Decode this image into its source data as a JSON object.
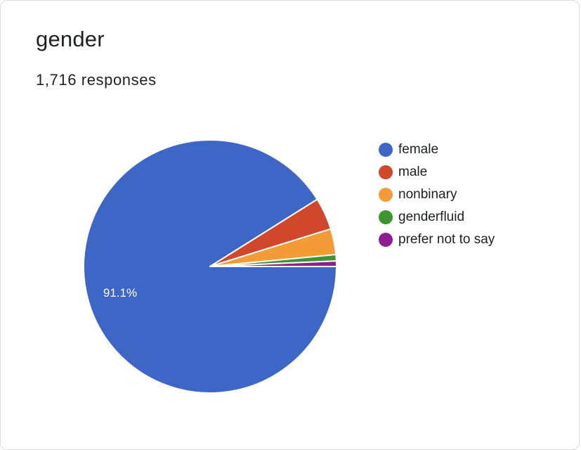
{
  "header": {
    "title": "gender",
    "responses": "1,716 responses"
  },
  "chart_data": {
    "type": "pie",
    "title": "gender",
    "categories": [
      "female",
      "male",
      "nonbinary",
      "genderfluid",
      "prefer not to say"
    ],
    "values": [
      91.1,
      4.1,
      3.3,
      0.8,
      0.7
    ],
    "colors": [
      "#3e66c6",
      "#d1472b",
      "#f39c37",
      "#3f9432",
      "#8e1d91"
    ],
    "data_labels": [
      "91.1%",
      "",
      "",
      "",
      ""
    ],
    "legend_position": "right"
  }
}
